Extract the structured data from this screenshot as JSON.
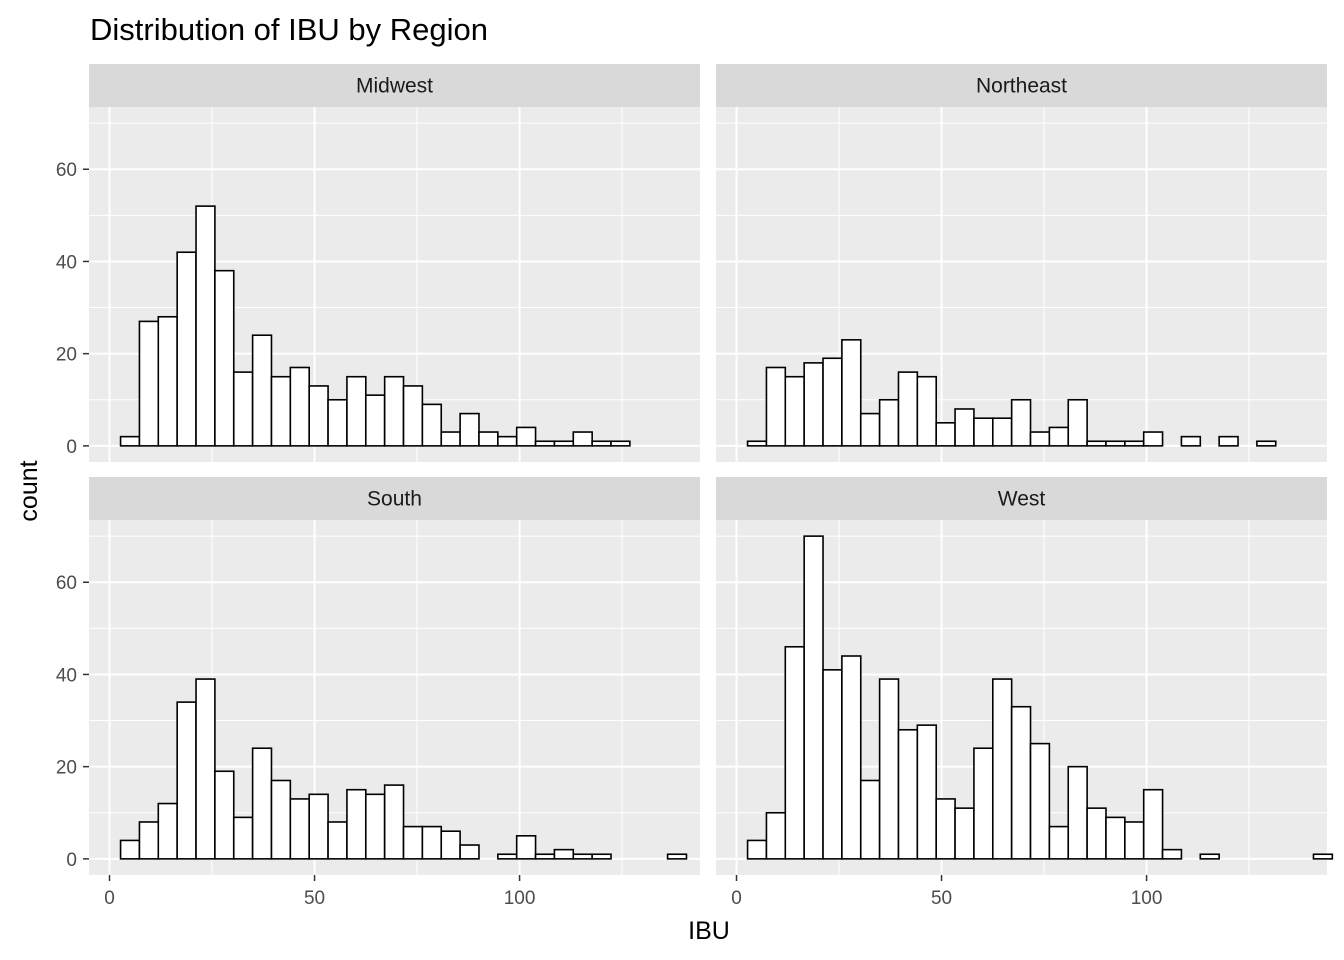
{
  "chart_data": {
    "type": "histogram",
    "title": "Distribution of IBU by Region",
    "xlabel": "IBU",
    "ylabel": "count",
    "bin_width": 4.6,
    "first_bin_center": 5,
    "xlim": [
      -5,
      144
    ],
    "ylim": [
      -3.5,
      73.5
    ],
    "x_ticks": [
      0,
      50,
      100
    ],
    "y_ticks": [
      0,
      20,
      40,
      60
    ],
    "facet_layout": "2x2 grid",
    "bar_fill": "#ffffff",
    "bar_stroke": "#000000",
    "panel_background": "#ebebeb",
    "strip_background": "#d9d9d9",
    "grid_color": "#ffffff",
    "panels": [
      {
        "name": "Midwest",
        "values": [
          2,
          27,
          28,
          42,
          52,
          38,
          16,
          24,
          15,
          17,
          13,
          10,
          15,
          11,
          15,
          13,
          9,
          3,
          7,
          3,
          2,
          4,
          1,
          1,
          3,
          1,
          1,
          0,
          0,
          0,
          0
        ]
      },
      {
        "name": "Northeast",
        "values": [
          1,
          17,
          15,
          18,
          19,
          23,
          7,
          10,
          16,
          15,
          5,
          8,
          6,
          6,
          10,
          3,
          4,
          10,
          1,
          1,
          1,
          3,
          0,
          2,
          0,
          2,
          0,
          1,
          0,
          0,
          0
        ]
      },
      {
        "name": "South",
        "values": [
          4,
          8,
          12,
          34,
          39,
          19,
          9,
          24,
          17,
          13,
          14,
          8,
          15,
          14,
          16,
          7,
          7,
          6,
          3,
          0,
          1,
          5,
          1,
          2,
          1,
          1,
          0,
          0,
          0,
          1,
          0
        ]
      },
      {
        "name": "West",
        "values": [
          4,
          10,
          46,
          70,
          41,
          44,
          17,
          39,
          28,
          29,
          13,
          11,
          24,
          39,
          33,
          25,
          7,
          20,
          11,
          9,
          8,
          15,
          2,
          0,
          1,
          0,
          0,
          0,
          0,
          0,
          1
        ]
      }
    ]
  }
}
